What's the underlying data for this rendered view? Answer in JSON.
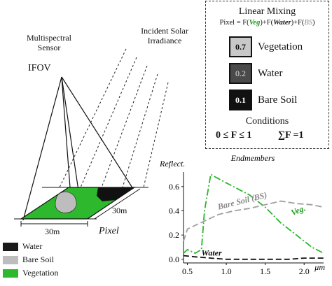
{
  "sensor": {
    "title_line1": "Multispectral",
    "title_line2": "Sensor",
    "ifov": "IFOV"
  },
  "irradiance": {
    "line1": "Incident Solar",
    "line2": "Irradiance"
  },
  "pixel": {
    "dim_x": "30m",
    "dim_y": "30m",
    "label": "Pixel"
  },
  "legend": [
    {
      "label": "Water",
      "color": "#1a1a1a"
    },
    {
      "label": "Bare Soil",
      "color": "#bdbdbd"
    },
    {
      "label": "Vegetation",
      "color": "#2db82d"
    }
  ],
  "mixing": {
    "title": "Linear Mixing",
    "eq_prefix": "Pixel = F(",
    "eq_veg": "Veg",
    "eq_mid1": ")+F(",
    "eq_water": "Water",
    "eq_mid2": ")+F(",
    "eq_bs": "BS",
    "eq_suffix": ")",
    "fractions": [
      {
        "value": "0.7",
        "name": "Vegetation",
        "color": "#c8c8c8",
        "text_color": "#111111"
      },
      {
        "value": "0.2",
        "name": "Water",
        "color": "#4a4a4a",
        "text_color": "#dddddd"
      },
      {
        "value": "0.1",
        "name": "Bare Soil",
        "color": "#111111",
        "text_color": "#ffffff"
      }
    ],
    "conditions_title": "Conditions",
    "condition1": "0 ≤ F ≤ 1",
    "condition2": "∑F =1"
  },
  "chart_data": {
    "type": "line",
    "title": "Endmembers",
    "ylabel": "Reflect.",
    "xlabel": "μm",
    "xlim": [
      0.45,
      2.25
    ],
    "ylim": [
      -0.03,
      0.72
    ],
    "xticks": [
      0.5,
      1.0,
      1.5,
      2.0
    ],
    "xtick_labels": [
      "0.5",
      "1.0",
      "1.5",
      "2.0"
    ],
    "yticks": [
      0.0,
      0.2,
      0.4,
      0.6
    ],
    "ytick_labels": [
      "0.0",
      "0.2",
      "0.4",
      "0.6"
    ],
    "series": [
      {
        "name": "Veg.",
        "color": "#2ab52a",
        "dash": "10,3,2,3",
        "x": [
          0.45,
          0.5,
          0.6,
          0.68,
          0.72,
          0.8,
          1.0,
          1.3,
          1.5,
          1.7,
          1.9,
          2.1,
          2.25
        ],
        "y": [
          0.05,
          0.08,
          0.05,
          0.08,
          0.4,
          0.7,
          0.63,
          0.53,
          0.43,
          0.3,
          0.2,
          0.1,
          0.05
        ]
      },
      {
        "name": "Bare Soil (BS)",
        "color": "#a0a0a0",
        "dash": "9,4",
        "x": [
          0.45,
          0.5,
          0.7,
          0.9,
          1.1,
          1.3,
          1.5,
          1.7,
          1.9,
          2.1,
          2.25
        ],
        "y": [
          0.15,
          0.25,
          0.31,
          0.37,
          0.4,
          0.42,
          0.45,
          0.48,
          0.46,
          0.45,
          0.43
        ]
      },
      {
        "name": "Water",
        "color": "#111111",
        "dash": "8,4",
        "x": [
          0.45,
          0.6,
          0.8,
          1.0,
          1.2,
          1.4,
          1.6,
          1.8,
          2.0,
          2.25
        ],
        "y": [
          0.03,
          0.02,
          0.01,
          0.0,
          0.0,
          0.0,
          0.0,
          0.0,
          0.01,
          0.01
        ]
      }
    ]
  }
}
